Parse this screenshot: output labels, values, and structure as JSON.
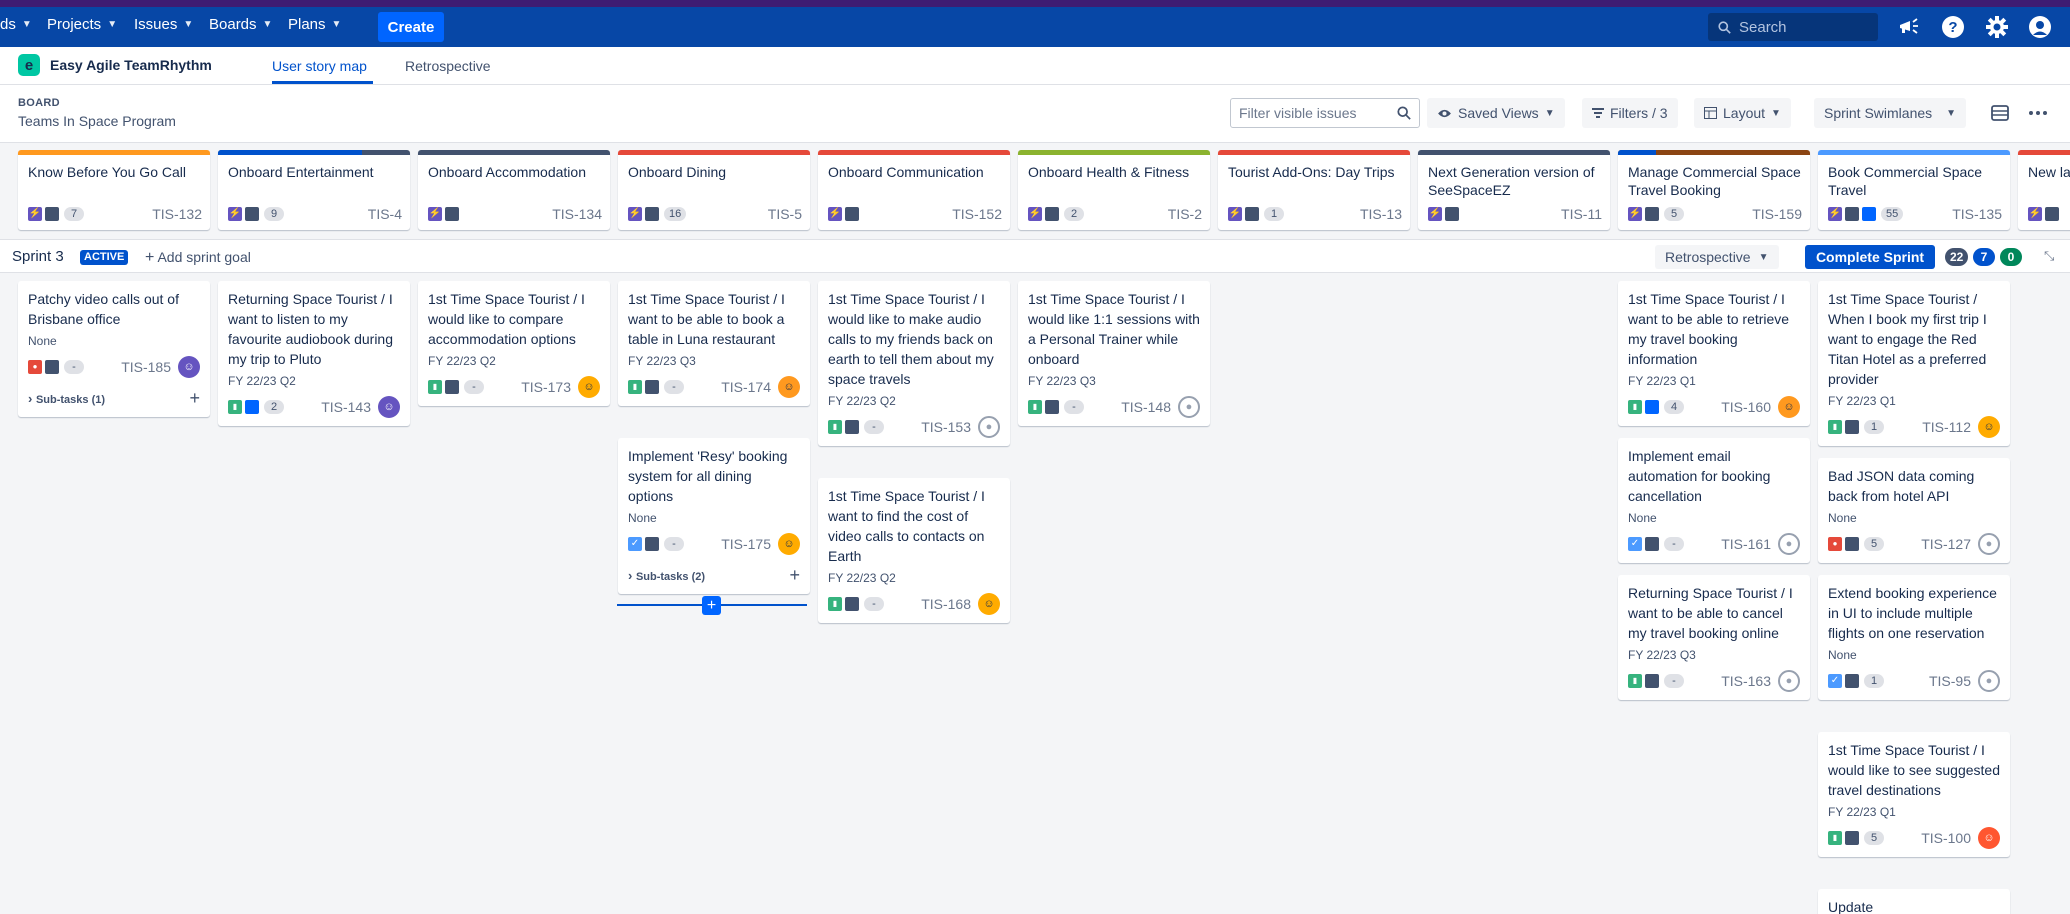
{
  "nav": {
    "partial_item": "ds",
    "items": [
      "Projects",
      "Issues",
      "Boards",
      "Plans"
    ],
    "create_label": "Create",
    "search_placeholder": "Search"
  },
  "app": {
    "logo_letter": "e",
    "name": "Easy Agile TeamRhythm",
    "tabs": [
      "User story map",
      "Retrospective"
    ]
  },
  "board": {
    "label": "BOARD",
    "name": "Teams In Space Program",
    "filter_placeholder": "Filter visible issues",
    "saved_views": "Saved Views",
    "filters": "Filters / 3",
    "layout": "Layout",
    "swimlanes": "Sprint Swimlanes"
  },
  "epics": [
    {
      "title": "Know Before You Go Call",
      "count": "7",
      "key": "TIS-132",
      "color": "#ff991f",
      "progress": 0
    },
    {
      "title": "Onboard Entertainment",
      "count": "9",
      "key": "TIS-4",
      "color": "#42526e",
      "progress": 0.75
    },
    {
      "title": "Onboard Accommodation",
      "count": "",
      "key": "TIS-134",
      "color": "#42526e",
      "progress": 0
    },
    {
      "title": "Onboard Dining",
      "count": "16",
      "key": "TIS-5",
      "color": "#e5493a",
      "progress": 0
    },
    {
      "title": "Onboard Communication",
      "count": "",
      "key": "TIS-152",
      "color": "#e5493a",
      "progress": 0
    },
    {
      "title": "Onboard Health & Fitness",
      "count": "2",
      "key": "TIS-2",
      "color": "#8bb32f",
      "progress": 0
    },
    {
      "title": "Tourist Add-Ons: Day Trips",
      "count": "1",
      "key": "TIS-13",
      "color": "#e5493a",
      "progress": 0
    },
    {
      "title": "Next Generation version of SeeSpaceEZ",
      "count": "",
      "key": "TIS-11",
      "color": "#42526e",
      "progress": 0
    },
    {
      "title": "Manage Commercial Space Travel Booking",
      "count": "5",
      "key": "TIS-159",
      "color": "#8b4513",
      "progress": 0.2
    },
    {
      "title": "Book Commercial Space Travel",
      "count": "55",
      "key": "TIS-135",
      "color": "#4c9aff",
      "progress": 0
    },
    {
      "title": "New la",
      "count": "",
      "key": "",
      "color": "#e5493a",
      "progress": 0
    }
  ],
  "sprint": {
    "name": "Sprint 3",
    "badge": "ACTIVE",
    "add_goal": "Add sprint goal",
    "retro": "Retrospective",
    "complete": "Complete Sprint",
    "counts": [
      "22",
      "7",
      "0"
    ]
  },
  "cards": [
    {
      "title": "Patchy video calls out of Brisbane office",
      "release": "None",
      "type": "bug",
      "est": "-",
      "key": "TIS-185",
      "avatar": "purple",
      "subtasks": "Sub-tasks (1)"
    },
    {
      "title": "Returning Space Tourist / I want to listen to my favourite audiobook during my trip to Pluto",
      "release": "FY 22/23 Q2",
      "type": "story-blue",
      "est": "2",
      "key": "TIS-143",
      "avatar": "purple"
    },
    {
      "title": "1st Time Space Tourist / I would like to compare accommodation options",
      "release": "FY 22/23 Q2",
      "type": "story",
      "est": "-",
      "key": "TIS-173",
      "avatar": "orange"
    },
    {
      "title": "1st Time Space Tourist / I want to be able to book a table in Luna restaurant",
      "release": "FY 22/23 Q3",
      "type": "story",
      "est": "-",
      "key": "TIS-174",
      "avatar": "dark"
    },
    {
      "title": "Implement 'Resy' booking system for all dining options",
      "release": "None",
      "type": "task",
      "est": "-",
      "key": "TIS-175",
      "avatar": "orange",
      "subtasks": "Sub-tasks (2)"
    },
    {
      "title": "1st Time Space Tourist / I would like to make audio calls to my friends back on earth to tell them about my space travels",
      "release": "FY 22/23 Q2",
      "type": "story",
      "est": "-",
      "key": "TIS-153",
      "avatar": "empty"
    },
    {
      "title": "1st Time Space Tourist / I want to find the cost of video calls to contacts on Earth",
      "release": "FY 22/23 Q2",
      "type": "story",
      "est": "-",
      "key": "TIS-168",
      "avatar": "orange"
    },
    {
      "title": "1st Time Space Tourist / I would like 1:1 sessions with a Personal Trainer while onboard",
      "release": "FY 22/23 Q3",
      "type": "story",
      "est": "-",
      "key": "TIS-148",
      "avatar": "empty"
    },
    {
      "title": "1st Time Space Tourist / I want to be able to retrieve my travel booking information",
      "release": "FY 22/23 Q1",
      "type": "story-blue",
      "est": "4",
      "key": "TIS-160",
      "avatar": "dark"
    },
    {
      "title": "Implement email automation for booking cancellation",
      "release": "None",
      "type": "task",
      "est": "-",
      "key": "TIS-161",
      "avatar": "empty"
    },
    {
      "title": "Returning Space Tourist / I want to be able to cancel my travel booking online",
      "release": "FY 22/23 Q3",
      "type": "story",
      "est": "-",
      "key": "TIS-163",
      "avatar": "empty"
    },
    {
      "title": "1st Time Space Tourist / When I book my first trip I want to engage the Red Titan Hotel as a preferred provider",
      "release": "FY 22/23 Q1",
      "type": "story",
      "est": "1",
      "key": "TIS-112",
      "avatar": "orange"
    },
    {
      "title": "Bad JSON data coming back from hotel API",
      "release": "None",
      "type": "bug",
      "est": "5",
      "key": "TIS-127",
      "avatar": "empty"
    },
    {
      "title": "Extend booking experience in UI to include multiple flights on one reservation",
      "release": "None",
      "type": "task",
      "est": "1",
      "key": "TIS-95",
      "avatar": "empty"
    },
    {
      "title": "1st Time Space Tourist / I would like to see suggested travel destinations",
      "release": "FY 22/23 Q1",
      "type": "story",
      "est": "5",
      "key": "TIS-100",
      "avatar": "red"
    },
    {
      "title": "Update",
      "release": "",
      "type": "",
      "est": "",
      "key": "",
      "avatar": ""
    }
  ]
}
